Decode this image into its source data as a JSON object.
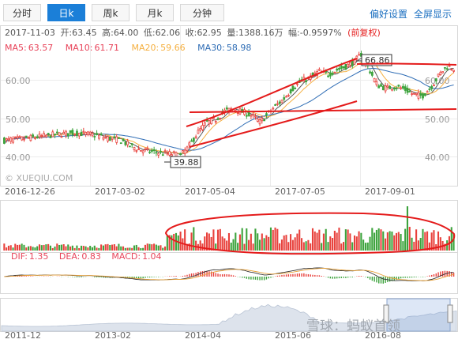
{
  "toolbar": {
    "tabs": [
      {
        "label": "分时",
        "active": false
      },
      {
        "label": "日k",
        "active": true
      },
      {
        "label": "周k",
        "active": false
      },
      {
        "label": "月k",
        "active": false
      },
      {
        "label": "分钟",
        "active": false
      }
    ],
    "settings_label": "偏好设置",
    "fullscreen_label": "全屏显示"
  },
  "info_bar": {
    "date": "2017-11-03",
    "open_label": "开:",
    "open": "63.45",
    "high_label": "高:",
    "high": "64.00",
    "low_label": "低:",
    "low": "62.06",
    "close_label": "收:",
    "close": "62.95",
    "volume_label": "量:",
    "volume": "1388.16万",
    "change_label": "幅:",
    "change": "-0.9597%",
    "adjust": "(前复权)"
  },
  "ma_legend": [
    {
      "label": "MA5:",
      "value": "63.57",
      "color": "#e8445a"
    },
    {
      "label": "MA10:",
      "value": "61.71",
      "color": "#e8445a"
    },
    {
      "label": "MA20:",
      "value": "59.66",
      "color": "#f5b041"
    },
    {
      "label": "MA30:",
      "value": "58.98",
      "color": "#2f6db5"
    }
  ],
  "macd_legend": [
    {
      "label": "DIF:",
      "value": "1.35",
      "color": "#e8445a"
    },
    {
      "label": "DEA:",
      "value": "0.83",
      "color": "#e8445a"
    },
    {
      "label": "MACD:",
      "value": "1.04",
      "color": "#e8445a"
    }
  ],
  "watermark": "© XUEQIU.COM",
  "brand_watermark": "雪球：蚂蚁首领",
  "colors": {
    "up": "#e8413c",
    "down": "#3ca33c",
    "ma5": "#555555",
    "ma10": "#f5b041",
    "ma30": "#2f6db5",
    "annotation": "#e41b1b",
    "accent": "#1b7fd8"
  },
  "chart_data": {
    "type": "candlestick",
    "y_ticks": [
      "60.00",
      "50.00",
      "40.00"
    ],
    "ylim": [
      35,
      68
    ],
    "x_ticks": [
      "2016-12-26",
      "2017-03-02",
      "2017-05-04",
      "2017-07-05",
      "2017-09-01"
    ],
    "annotations": {
      "max": "66.86",
      "min": "39.88"
    },
    "price_path": [
      [
        0,
        44.2
      ],
      [
        0.04,
        44.6
      ],
      [
        0.08,
        45.2
      ],
      [
        0.12,
        45.8
      ],
      [
        0.16,
        46.2
      ],
      [
        0.2,
        45.6
      ],
      [
        0.23,
        44.8
      ],
      [
        0.26,
        44.2
      ],
      [
        0.28,
        42.8
      ],
      [
        0.3,
        41.8
      ],
      [
        0.33,
        41.2
      ],
      [
        0.36,
        40.8
      ],
      [
        0.38,
        40.6
      ],
      [
        0.39,
        39.9
      ],
      [
        0.41,
        42.5
      ],
      [
        0.43,
        46.2
      ],
      [
        0.45,
        48.8
      ],
      [
        0.47,
        49.6
      ],
      [
        0.49,
        51.8
      ],
      [
        0.51,
        52.4
      ],
      [
        0.53,
        51.6
      ],
      [
        0.55,
        50.8
      ],
      [
        0.57,
        48.9
      ],
      [
        0.59,
        51.6
      ],
      [
        0.6,
        52.8
      ],
      [
        0.62,
        54.8
      ],
      [
        0.64,
        57.6
      ],
      [
        0.66,
        59.6
      ],
      [
        0.68,
        60.5
      ],
      [
        0.7,
        62.2
      ],
      [
        0.72,
        61.4
      ],
      [
        0.74,
        62.6
      ],
      [
        0.76,
        63.5
      ],
      [
        0.78,
        64.8
      ],
      [
        0.795,
        66.86
      ],
      [
        0.81,
        63.2
      ],
      [
        0.83,
        58.6
      ],
      [
        0.85,
        57.8
      ],
      [
        0.87,
        58.3
      ],
      [
        0.89,
        57.6
      ],
      [
        0.91,
        56.2
      ],
      [
        0.93,
        55.8
      ],
      [
        0.95,
        58.2
      ],
      [
        0.97,
        61.6
      ],
      [
        0.985,
        63.6
      ],
      [
        1,
        62.95
      ]
    ],
    "overview_x_ticks": [
      "2011-12",
      "2013-02",
      "2014-04",
      "2015-06",
      "2016-08"
    ]
  }
}
